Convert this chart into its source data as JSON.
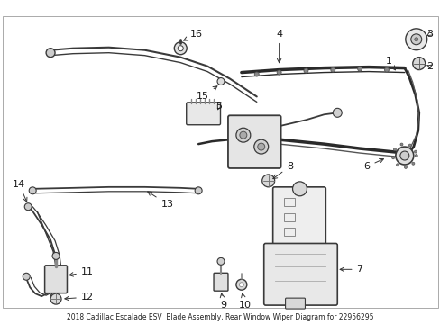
{
  "title": "2018 Cadillac Escalade ESV  Blade Assembly, Rear Window Wiper Diagram for 22956295",
  "bg_color": "#ffffff",
  "line_color": "#3a3a3a",
  "text_color": "#1a1a1a",
  "fig_width": 4.89,
  "fig_height": 3.6,
  "dpi": 100,
  "title_fontsize": 5.5,
  "label_fontsize": 8.0,
  "border_lw": 0.7,
  "border_color": "#aaaaaa"
}
